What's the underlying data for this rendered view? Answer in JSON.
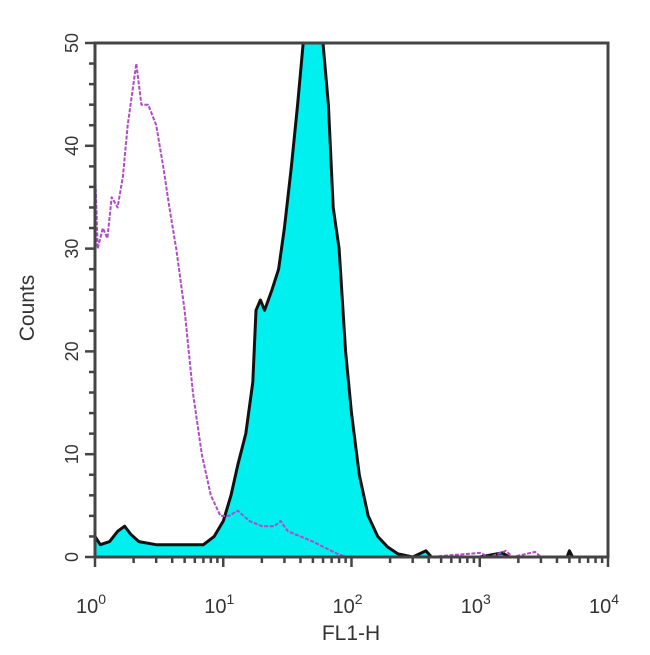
{
  "chart_data": {
    "type": "area",
    "title": "",
    "xlabel": "FL1-H",
    "ylabel": "Counts",
    "xscale": "log",
    "xlim": [
      1,
      10000
    ],
    "ylim": [
      0,
      50
    ],
    "grid": false,
    "x_ticks": [
      {
        "value": 1,
        "base": "10",
        "exp": "0"
      },
      {
        "value": 10,
        "base": "10",
        "exp": "1"
      },
      {
        "value": 100,
        "base": "10",
        "exp": "2"
      },
      {
        "value": 1000,
        "base": "10",
        "exp": "3"
      },
      {
        "value": 10000,
        "base": "10",
        "exp": "4"
      }
    ],
    "y_ticks": [
      "0",
      "10",
      "20",
      "30",
      "40",
      "50"
    ],
    "series": [
      {
        "style": "filled",
        "color": "#00f0f0",
        "edge_color": "#111111",
        "points": [
          [
            1,
            2
          ],
          [
            1.1,
            1.2
          ],
          [
            1.3,
            1.5
          ],
          [
            1.5,
            2.5
          ],
          [
            1.7,
            3
          ],
          [
            1.9,
            2.2
          ],
          [
            2.2,
            1.5
          ],
          [
            3,
            1.2
          ],
          [
            5,
            1.2
          ],
          [
            7,
            1.2
          ],
          [
            8.5,
            2
          ],
          [
            10,
            3.5
          ],
          [
            11.5,
            6
          ],
          [
            13,
            9
          ],
          [
            15,
            12
          ],
          [
            17,
            17
          ],
          [
            18,
            24
          ],
          [
            19.5,
            25
          ],
          [
            21,
            24
          ],
          [
            24,
            26
          ],
          [
            27,
            28
          ],
          [
            30,
            32
          ],
          [
            34,
            38
          ],
          [
            38,
            44
          ],
          [
            42,
            50
          ],
          [
            60,
            50
          ],
          [
            66,
            44
          ],
          [
            72,
            34
          ],
          [
            80,
            30
          ],
          [
            90,
            20
          ],
          [
            100,
            14
          ],
          [
            115,
            8
          ],
          [
            135,
            4
          ],
          [
            160,
            2
          ],
          [
            190,
            1
          ],
          [
            230,
            0.3
          ],
          [
            300,
            0
          ],
          [
            380,
            0.6
          ],
          [
            420,
            0
          ],
          [
            1000,
            0
          ],
          [
            1500,
            0.4
          ],
          [
            1700,
            0
          ],
          [
            4800,
            0
          ],
          [
            5000,
            0.6
          ],
          [
            5300,
            0
          ],
          [
            10000,
            0
          ]
        ]
      },
      {
        "style": "line",
        "color": "#b04cc8",
        "points": [
          [
            1,
            38
          ],
          [
            1.05,
            30
          ],
          [
            1.15,
            32
          ],
          [
            1.25,
            31
          ],
          [
            1.35,
            35
          ],
          [
            1.5,
            34
          ],
          [
            1.65,
            37
          ],
          [
            1.8,
            42
          ],
          [
            2.1,
            48
          ],
          [
            2.3,
            44
          ],
          [
            2.6,
            44
          ],
          [
            3,
            42
          ],
          [
            3.4,
            38
          ],
          [
            3.8,
            34
          ],
          [
            4.3,
            30
          ],
          [
            5,
            24
          ],
          [
            5.8,
            16
          ],
          [
            6.8,
            10
          ],
          [
            8,
            6
          ],
          [
            9.5,
            4
          ],
          [
            11,
            4
          ],
          [
            13,
            4.5
          ],
          [
            16,
            3.5
          ],
          [
            20,
            3
          ],
          [
            25,
            3
          ],
          [
            28,
            3.5
          ],
          [
            32,
            2.5
          ],
          [
            40,
            2
          ],
          [
            50,
            1.5
          ],
          [
            60,
            1
          ],
          [
            75,
            0.4
          ],
          [
            90,
            0
          ],
          [
            400,
            0
          ],
          [
            1000,
            0.4
          ],
          [
            1200,
            0
          ],
          [
            1600,
            0.6
          ],
          [
            1800,
            0
          ],
          [
            2700,
            0.5
          ],
          [
            3000,
            0
          ],
          [
            10000,
            0
          ]
        ]
      }
    ]
  }
}
